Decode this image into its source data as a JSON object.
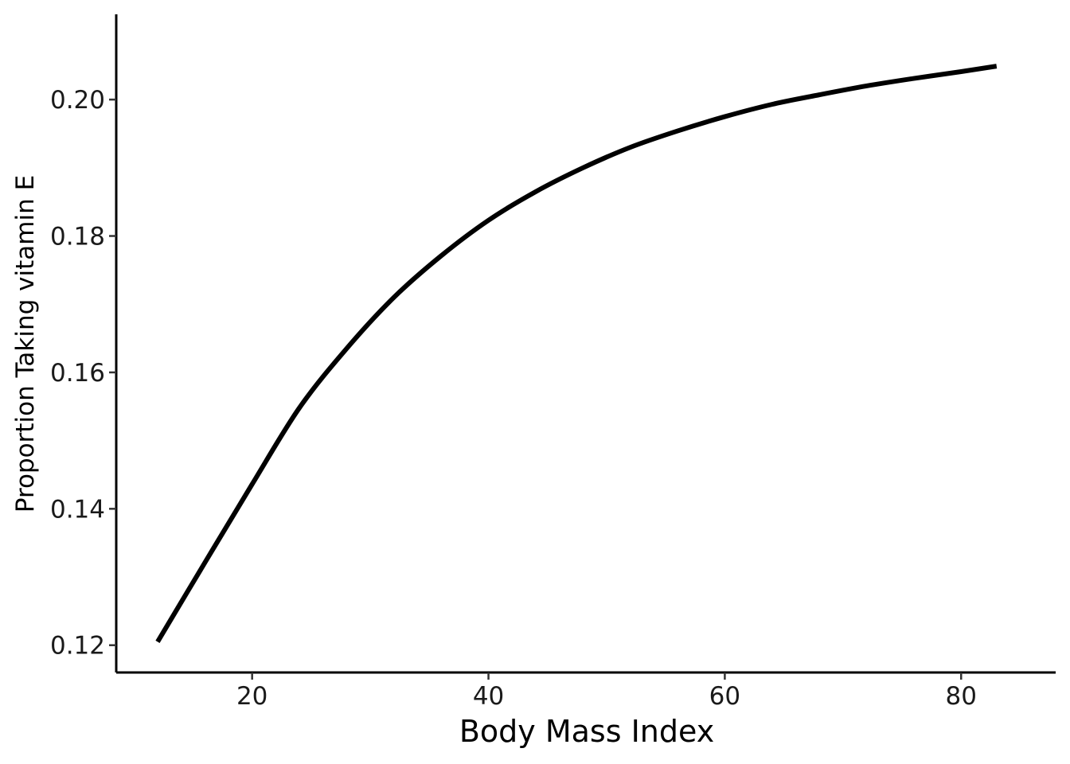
{
  "chart_data": {
    "type": "line",
    "title": "",
    "xlabel": "Body Mass Index",
    "ylabel": "Proportion Taking vitamin E",
    "xlim": [
      8.5,
      88
    ],
    "ylim": [
      0.116,
      0.2125
    ],
    "x_ticks": [
      20,
      40,
      60,
      80
    ],
    "y_ticks": [
      0.12,
      0.14,
      0.16,
      0.18,
      0.2
    ],
    "x_tick_labels": [
      "20",
      "40",
      "60",
      "80"
    ],
    "y_tick_labels": [
      "0.12",
      "0.14",
      "0.16",
      "0.18",
      "0.20"
    ],
    "grid": false,
    "legend": "none",
    "line_color": "#000000",
    "series": [
      {
        "x": [
          12,
          16,
          20,
          24,
          28,
          32,
          36,
          40,
          44,
          48,
          52,
          56,
          60,
          64,
          68,
          72,
          76,
          80,
          83
        ],
        "values": [
          0.1205,
          0.1321,
          0.1436,
          0.1548,
          0.1635,
          0.171,
          0.1771,
          0.1823,
          0.1865,
          0.19,
          0.193,
          0.1954,
          0.1975,
          0.1993,
          0.2007,
          0.202,
          0.2031,
          0.2041,
          0.2049
        ]
      }
    ]
  }
}
